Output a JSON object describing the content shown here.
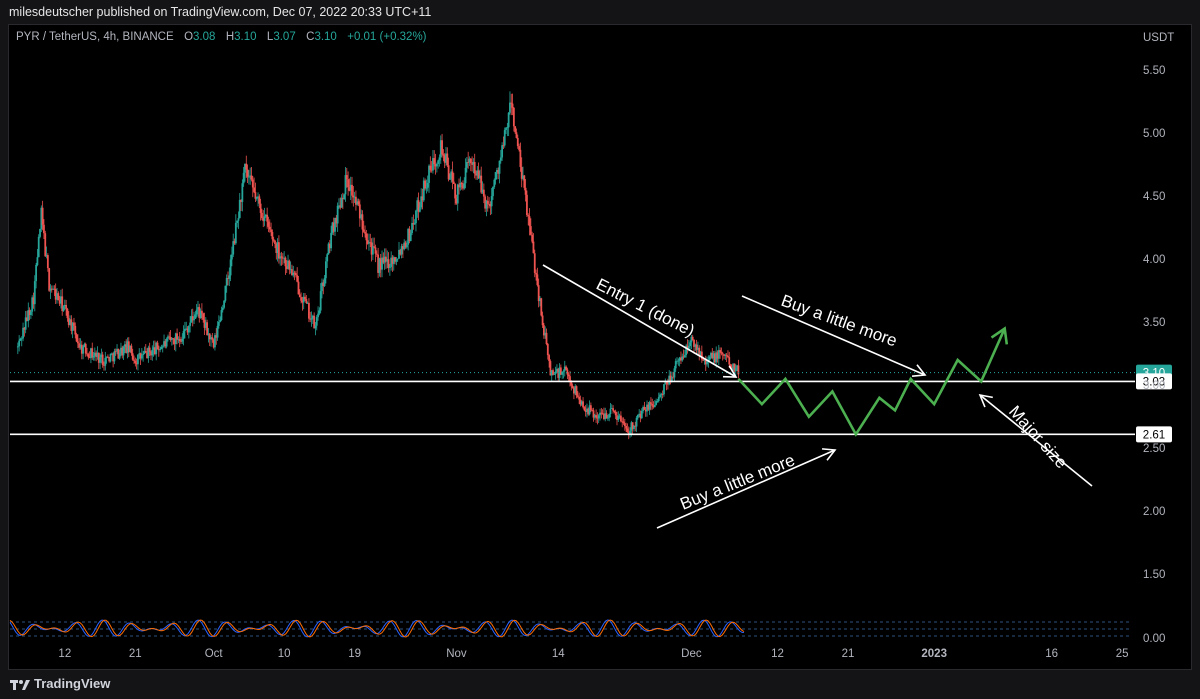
{
  "header": {
    "published_text": "milesdeutscher published on TradingView.com, Dec 07, 2022 20:33 UTC+11"
  },
  "legend": {
    "symbol": "PYR / TetherUS, 4h, BINANCE",
    "o_label": "O",
    "o_value": "3.08",
    "h_label": "H",
    "h_value": "3.10",
    "l_label": "L",
    "l_value": "3.07",
    "c_label": "C",
    "c_value": "3.10",
    "change": "+0.01 (+0.32%)"
  },
  "footer": {
    "brand": "TradingView"
  },
  "colors": {
    "bull": "#26a69a",
    "bear": "#ef5350",
    "projection": "#4caf50",
    "annotation": "#ffffff",
    "last_price_badge": "#26a69a"
  },
  "chart_data": {
    "type": "candlestick",
    "timeframe": "4h",
    "y_axis_unit": "USDT",
    "ylim": [
      1.2,
      5.7
    ],
    "y_ticks": [
      1.5,
      2.0,
      2.5,
      3.0,
      3.5,
      4.0,
      4.5,
      5.0,
      5.5
    ],
    "y_tick_labels": [
      "1.50",
      "2.00",
      "2.50",
      "3.00",
      "3.50",
      "4.00",
      "4.50",
      "5.00",
      "5.50"
    ],
    "x_tick_labels": [
      "12",
      "21",
      "Oct",
      "10",
      "19",
      "Nov",
      "14",
      "Dec",
      "12",
      "21",
      "2023",
      "16",
      "25"
    ],
    "x_tick_dates": [
      "2022-09-12",
      "2022-09-21",
      "2022-10-01",
      "2022-10-10",
      "2022-10-19",
      "2022-11-01",
      "2022-11-14",
      "2022-12-01",
      "2022-12-12",
      "2022-12-21",
      "2023-01-01",
      "2023-01-16",
      "2023-01-25"
    ],
    "price_path": [
      [
        "2022-09-06",
        3.3
      ],
      [
        "2022-09-08",
        3.7
      ],
      [
        "2022-09-09",
        4.35
      ],
      [
        "2022-09-10",
        3.8
      ],
      [
        "2022-09-12",
        3.6
      ],
      [
        "2022-09-14",
        3.3
      ],
      [
        "2022-09-17",
        3.2
      ],
      [
        "2022-09-20",
        3.3
      ],
      [
        "2022-09-21",
        3.2
      ],
      [
        "2022-09-24",
        3.3
      ],
      [
        "2022-09-27",
        3.4
      ],
      [
        "2022-09-29",
        3.6
      ],
      [
        "2022-10-01",
        3.3
      ],
      [
        "2022-10-03",
        3.9
      ],
      [
        "2022-10-05",
        4.7
      ],
      [
        "2022-10-07",
        4.4
      ],
      [
        "2022-10-09",
        4.1
      ],
      [
        "2022-10-11",
        3.9
      ],
      [
        "2022-10-13",
        3.6
      ],
      [
        "2022-10-14",
        3.45
      ],
      [
        "2022-10-16",
        4.2
      ],
      [
        "2022-10-18",
        4.65
      ],
      [
        "2022-10-20",
        4.3
      ],
      [
        "2022-10-22",
        3.95
      ],
      [
        "2022-10-24",
        4.0
      ],
      [
        "2022-10-26",
        4.2
      ],
      [
        "2022-10-28",
        4.6
      ],
      [
        "2022-10-30",
        4.9
      ],
      [
        "2022-11-01",
        4.5
      ],
      [
        "2022-11-03",
        4.8
      ],
      [
        "2022-11-05",
        4.4
      ],
      [
        "2022-11-07",
        4.9
      ],
      [
        "2022-11-08",
        5.25
      ],
      [
        "2022-11-09",
        4.8
      ],
      [
        "2022-11-10",
        4.4
      ],
      [
        "2022-11-12",
        3.5
      ],
      [
        "2022-11-13",
        3.1
      ],
      [
        "2022-11-15",
        3.1
      ],
      [
        "2022-11-17",
        2.85
      ],
      [
        "2022-11-19",
        2.75
      ],
      [
        "2022-11-21",
        2.8
      ],
      [
        "2022-11-23",
        2.65
      ],
      [
        "2022-11-25",
        2.8
      ],
      [
        "2022-11-27",
        2.9
      ],
      [
        "2022-11-29",
        3.15
      ],
      [
        "2022-12-01",
        3.35
      ],
      [
        "2022-12-03",
        3.2
      ],
      [
        "2022-12-05",
        3.25
      ],
      [
        "2022-12-07",
        3.1
      ]
    ],
    "last_price": 3.1,
    "horizontal_levels": [
      3.03,
      2.61
    ],
    "projection_path": [
      [
        "2022-12-07",
        3.05
      ],
      [
        "2022-12-10",
        2.85
      ],
      [
        "2022-12-13",
        3.05
      ],
      [
        "2022-12-16",
        2.75
      ],
      [
        "2022-12-19",
        2.95
      ],
      [
        "2022-12-22",
        2.61
      ],
      [
        "2022-12-25",
        2.9
      ],
      [
        "2022-12-27",
        2.8
      ],
      [
        "2022-12-29",
        3.05
      ],
      [
        "2023-01-01",
        2.85
      ],
      [
        "2023-01-04",
        3.2
      ],
      [
        "2023-01-07",
        3.03
      ],
      [
        "2023-01-10",
        3.45
      ]
    ],
    "annotations": [
      {
        "text": "Entry 1 (done)",
        "rotation": 27
      },
      {
        "text": "Buy a little more",
        "rotation": 20
      },
      {
        "text": "Buy a little more",
        "rotation": -22
      },
      {
        "text": "Major size",
        "rotation": 48
      }
    ],
    "oscillator": {
      "ylim": [
        0,
        0.2
      ],
      "tick_label": "0.00"
    }
  }
}
